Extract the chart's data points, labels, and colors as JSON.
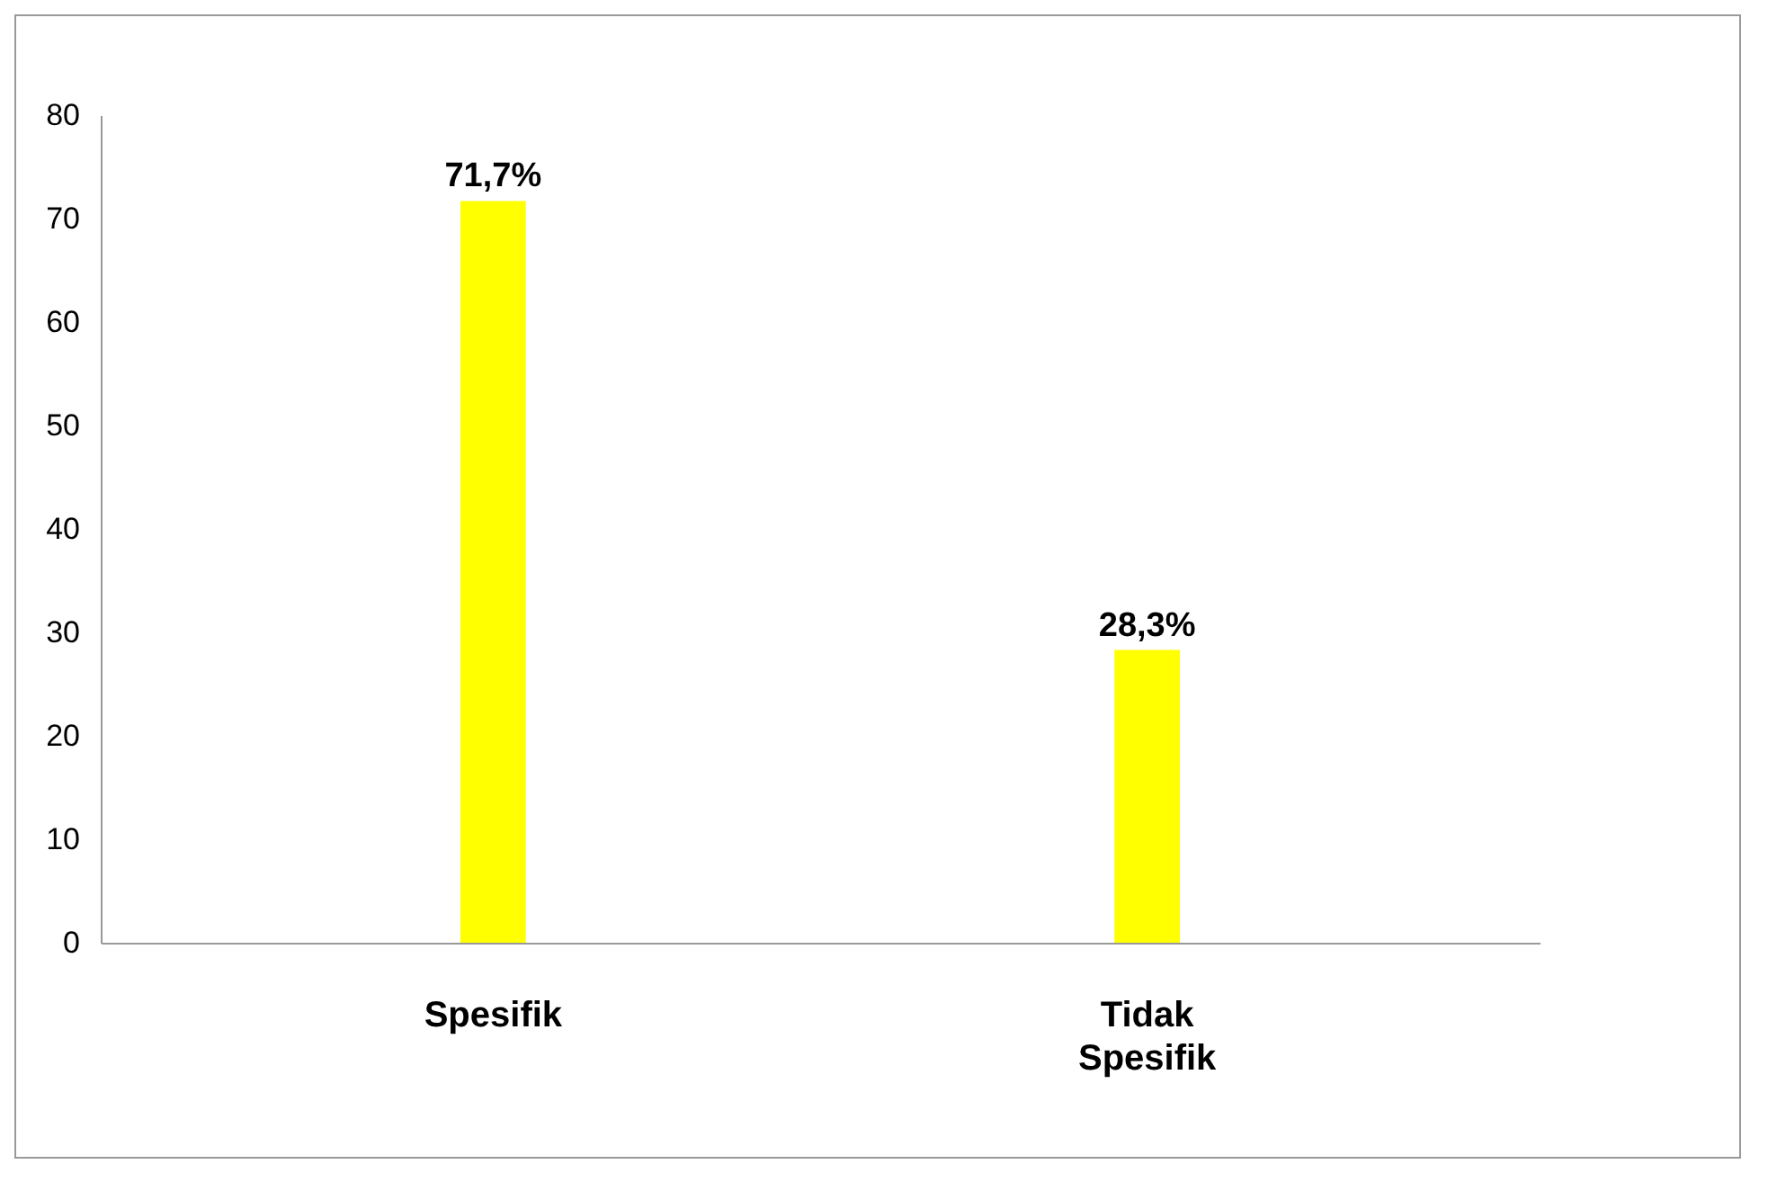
{
  "chart_data": {
    "type": "bar",
    "categories": [
      "Spesifik",
      "Tidak Spesifik"
    ],
    "values": [
      71.7,
      28.3
    ],
    "color": "#ffff00",
    "value_labels": [
      "71,7%",
      "28,3%"
    ],
    "ylim": [
      0,
      80
    ],
    "yticks": [
      0,
      10,
      20,
      30,
      40,
      50,
      60,
      70,
      80
    ],
    "grid": false
  }
}
